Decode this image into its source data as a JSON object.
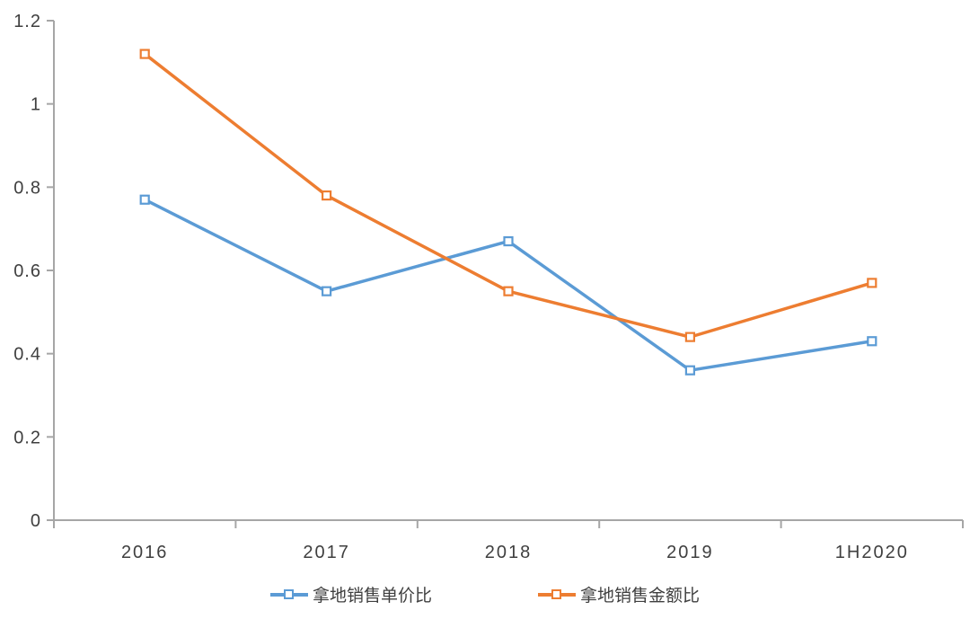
{
  "chart_data": {
    "type": "line",
    "title": "",
    "xlabel": "",
    "ylabel": "",
    "categories": [
      "2016",
      "2017",
      "2018",
      "2019",
      "1H2020"
    ],
    "series": [
      {
        "name": "拿地销售单价比",
        "color": "#5B9BD5",
        "values": [
          0.77,
          0.55,
          0.67,
          0.36,
          0.43
        ]
      },
      {
        "name": "拿地销售金额比",
        "color": "#ED7D31",
        "values": [
          1.12,
          0.78,
          0.55,
          0.44,
          0.57
        ]
      }
    ],
    "ylim": [
      0,
      1.2
    ],
    "ytick_step": 0.2,
    "ytick_labels": [
      "0",
      "0.2",
      "0.4",
      "0.6",
      "0.8",
      "1",
      "1.2"
    ],
    "grid": false,
    "legend_position": "bottom",
    "marker": "hollow-square",
    "axis_color": "#A6A6A6",
    "tick_label_color": "#3f3f3f"
  }
}
